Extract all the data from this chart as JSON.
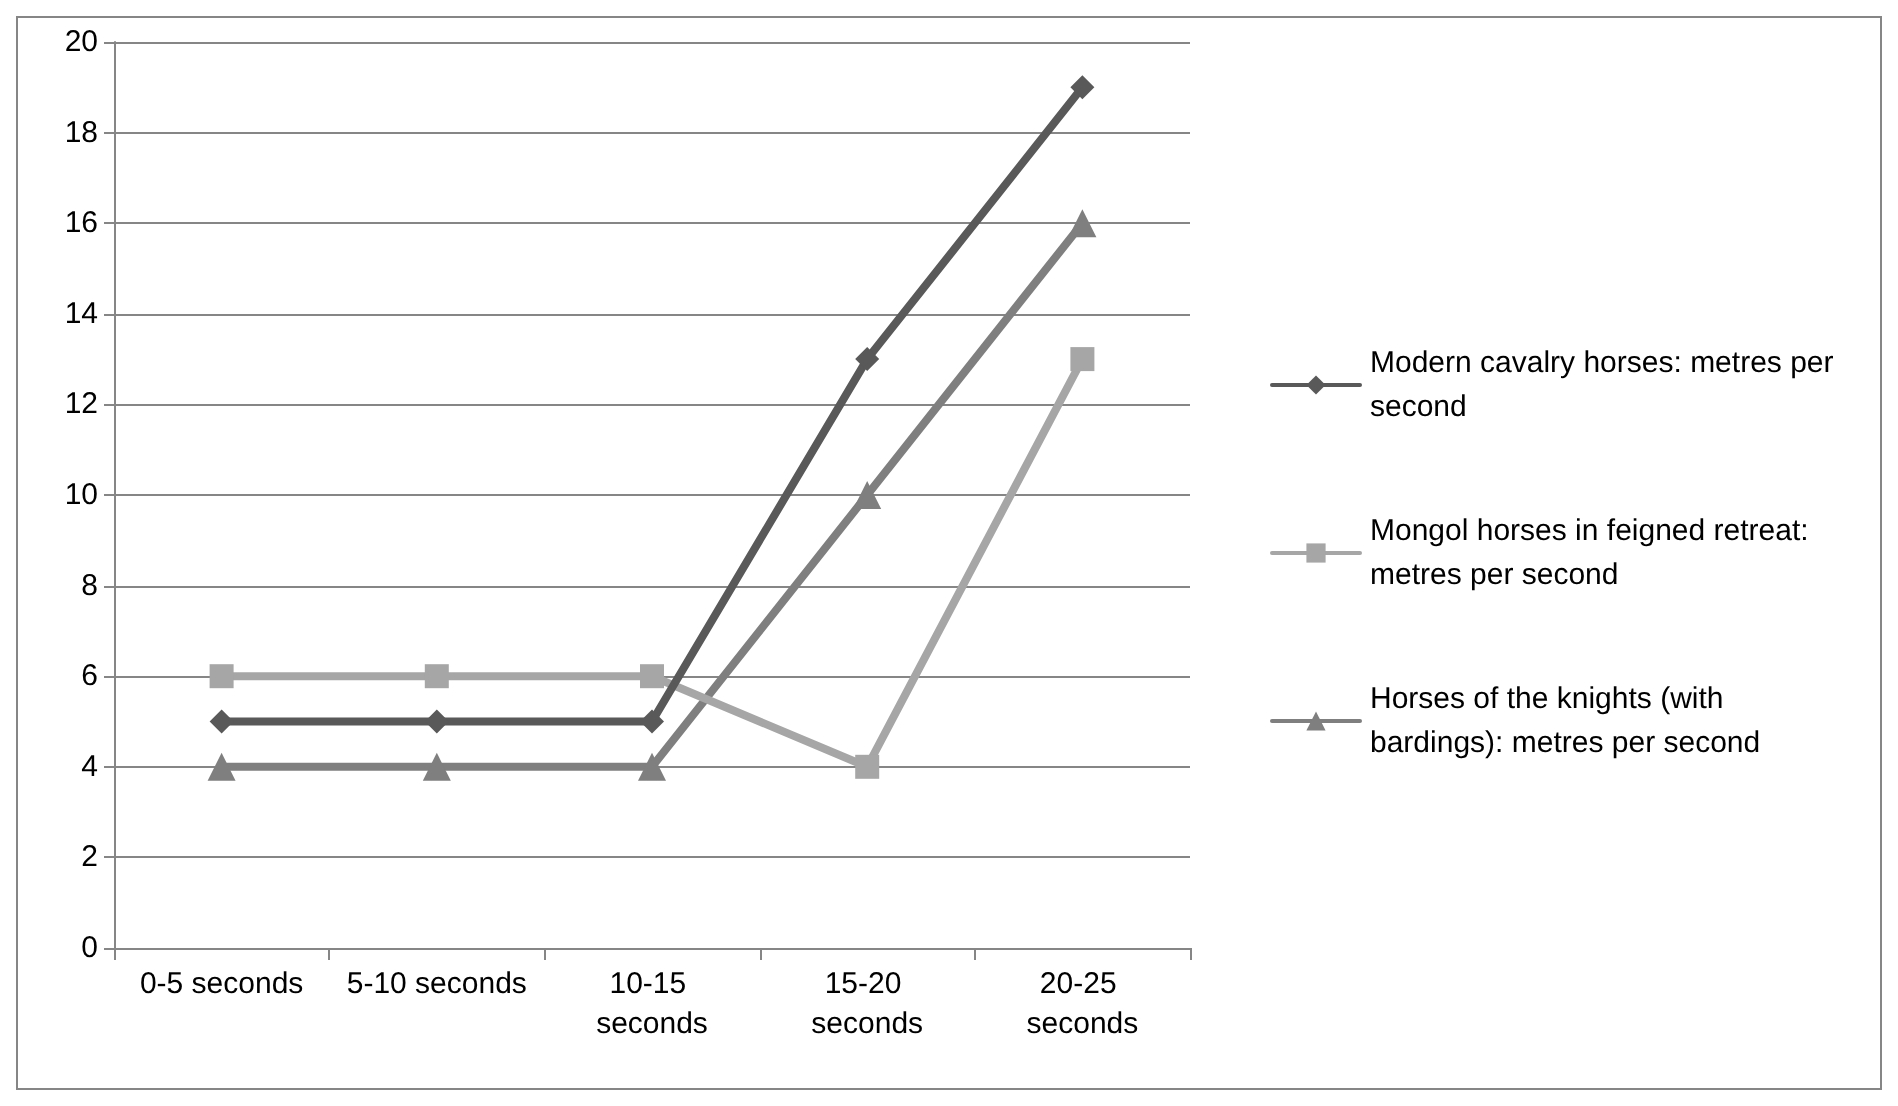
{
  "chart_data": {
    "type": "line",
    "categories": [
      "0-5 seconds",
      "5-10 seconds",
      "10-15 seconds",
      "15-20 seconds",
      "20-25 seconds"
    ],
    "series": [
      {
        "name": "Modern cavalry horses: metres per second",
        "color": "#595959",
        "marker": "diamond",
        "values": [
          5,
          5,
          5,
          13,
          19
        ]
      },
      {
        "name": "Mongol horses in feigned retreat: metres per second",
        "color": "#a6a6a6",
        "marker": "square",
        "values": [
          6,
          6,
          6,
          4,
          13
        ]
      },
      {
        "name": "Horses of the knights (with bardings): metres per second",
        "color": "#7f7f7f",
        "marker": "triangle",
        "values": [
          4,
          4,
          4,
          10,
          16
        ]
      }
    ],
    "ylim": [
      0,
      20
    ],
    "yticks": [
      0,
      2,
      4,
      6,
      8,
      10,
      12,
      14,
      16,
      18,
      20
    ],
    "grid": "y",
    "legend": "right",
    "line_style": "solid"
  }
}
